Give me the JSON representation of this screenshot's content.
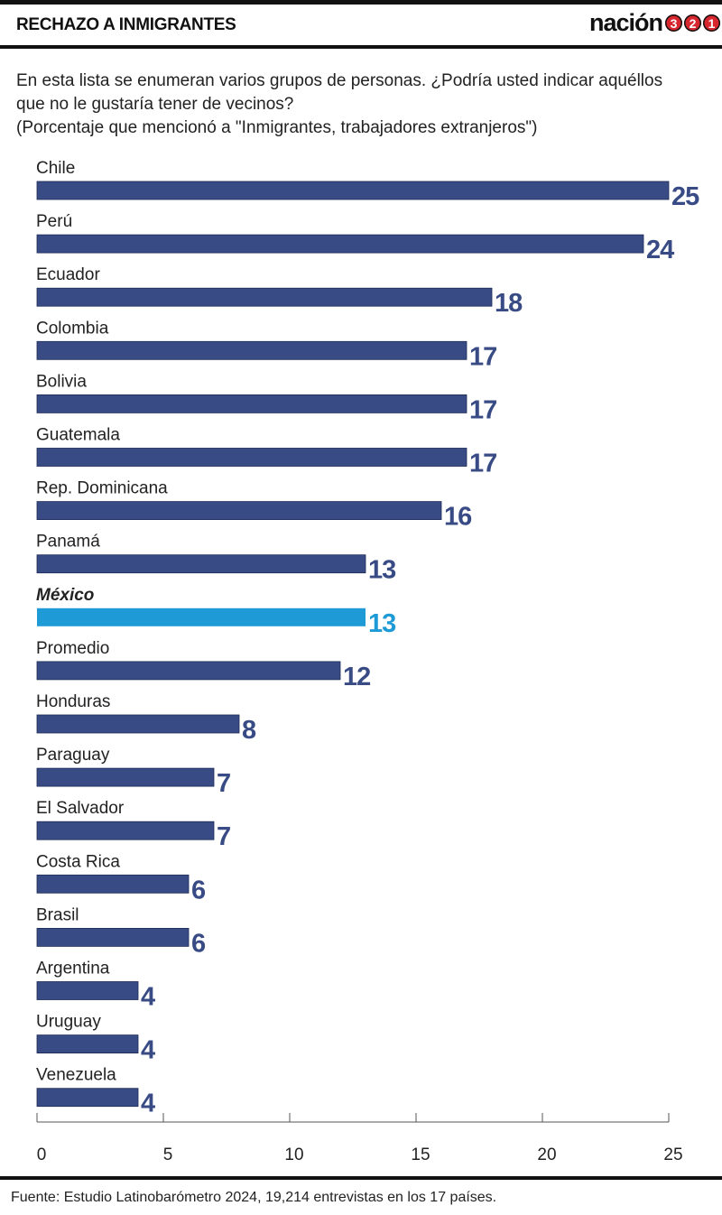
{
  "header": {
    "title": "RECHAZO A INMIGRANTES",
    "logo_text": "nación",
    "logo_numbers": [
      "3",
      "2",
      "1"
    ]
  },
  "subtitle": {
    "line1": "En esta lista se enumeran varios grupos de personas. ¿Podría usted indicar aquéllos",
    "line2": "que no le gustaría tener de vecinos?",
    "line3": "(Porcentaje que mencionó a \"Inmigrantes, trabajadores extranjeros\")"
  },
  "chart_data": {
    "type": "bar",
    "orientation": "horizontal",
    "categories": [
      "Chile",
      "Perú",
      "Ecuador",
      "Colombia",
      "Bolivia",
      "Guatemala",
      "Rep. Dominicana",
      "Panamá",
      "México",
      "Promedio",
      "Honduras",
      "Paraguay",
      "El Salvador",
      "Costa Rica",
      "Brasil",
      "Argentina",
      "Uruguay",
      "Venezuela"
    ],
    "values": [
      25,
      24,
      18,
      17,
      17,
      17,
      16,
      13,
      13,
      12,
      8,
      7,
      7,
      6,
      6,
      4,
      4,
      4
    ],
    "highlight": "México",
    "xlim": [
      0,
      25
    ],
    "xticks": [
      0,
      5,
      10,
      15,
      20,
      25
    ],
    "grid": false,
    "colors": {
      "bar": "#384b85",
      "highlight": "#1e9ad6",
      "axis": "#555555"
    }
  },
  "footer": {
    "source": "Fuente: Estudio Latinobarómetro 2024, 19,214 entrevistas en los 17 países."
  }
}
